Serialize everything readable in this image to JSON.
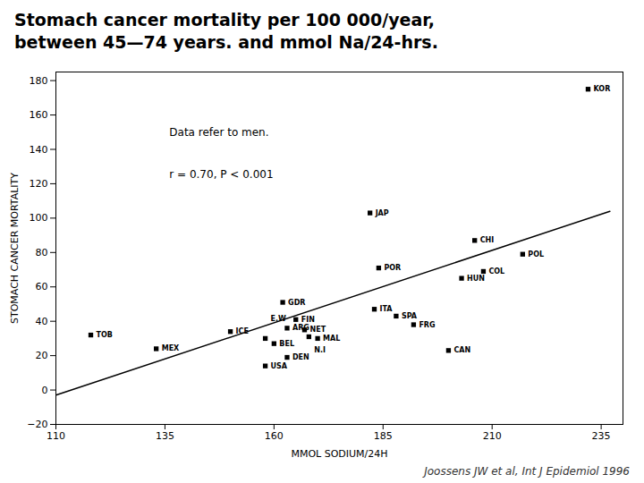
{
  "chart_data": {
    "type": "scatter",
    "title": "Stomach cancer mortality per 100 000/year,\nbetween 45—74 years. and mmol Na/24-hrs.",
    "xlabel": "MMOL SODIUM/24H",
    "ylabel": "STOMACH CANCER MORTALITY",
    "annotations": [
      "Data refer to men.",
      "r = 0.70, P < 0.001"
    ],
    "caption": "Joossens JW et al, Int J Epidemiol 1996",
    "xlim": [
      110,
      240
    ],
    "ylim": [
      -20,
      185
    ],
    "xticks": [
      110,
      135,
      160,
      185,
      210,
      235
    ],
    "yticks": [
      -20,
      0,
      20,
      40,
      60,
      80,
      100,
      120,
      140,
      160,
      180
    ],
    "series": [
      {
        "type": "scatter",
        "marker": "square",
        "color": "black",
        "x": [
          118,
          133,
          150,
          158,
          160,
          158,
          163,
          162,
          165,
          163,
          167,
          168,
          170,
          182,
          183,
          188,
          192,
          184,
          203,
          208,
          200,
          206,
          217,
          232
        ],
        "values": [
          32,
          24,
          34,
          30,
          27,
          14,
          19,
          51,
          41,
          36,
          35,
          31,
          30,
          103,
          47,
          43,
          38,
          71,
          65,
          69,
          23,
          87,
          79,
          175
        ],
        "labels": [
          "TOB",
          "MEX",
          "ICE",
          "E.W",
          "BEL",
          "USA",
          "DEN",
          "GDR",
          "FIN",
          "ARG",
          "NET",
          "N.I",
          "MAL",
          "JAP",
          "ITA",
          "SPA",
          "FRG",
          "POR",
          "HUN",
          "COL",
          "CAN",
          "CHI",
          "POL",
          "KOR"
        ]
      },
      {
        "type": "line",
        "line_style": "solid",
        "color": "black",
        "x": [
          110,
          237
        ],
        "values": [
          -3,
          104
        ]
      }
    ]
  }
}
